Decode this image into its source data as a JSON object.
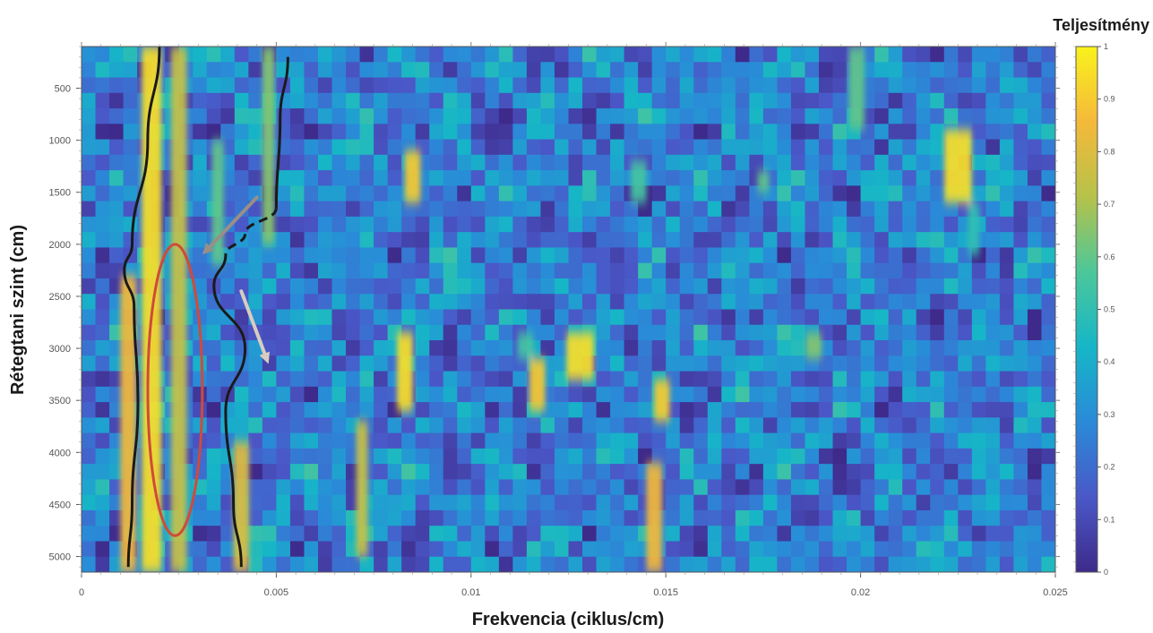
{
  "chart_data": {
    "type": "heatmap",
    "title": "",
    "xlabel": "Frekvencia (ciklus/cm)",
    "ylabel": "Rétegtani szint (cm)",
    "colorbar_label": "Teljesítmény",
    "xlim": [
      0,
      0.025
    ],
    "ylim": [
      100,
      5150
    ],
    "y_reversed": true,
    "clim": [
      0,
      1
    ],
    "colormap": "parula",
    "colormap_stops": [
      "#3e2a8a",
      "#4a58c8",
      "#2a8ad8",
      "#16b6c7",
      "#4cc79a",
      "#b6c24a",
      "#f5b93a",
      "#f9f21c"
    ],
    "x_ticks": [
      {
        "value": 0,
        "label": "0"
      },
      {
        "value": 0.005,
        "label": "0.005"
      },
      {
        "value": 0.01,
        "label": "0.01"
      },
      {
        "value": 0.015,
        "label": "0.015"
      },
      {
        "value": 0.02,
        "label": "0.02"
      },
      {
        "value": 0.025,
        "label": "0.025"
      }
    ],
    "y_ticks": [
      {
        "value": 500,
        "label": "500"
      },
      {
        "value": 1000,
        "label": "1000"
      },
      {
        "value": 1500,
        "label": "1500"
      },
      {
        "value": 2000,
        "label": "2000"
      },
      {
        "value": 2500,
        "label": "2500"
      },
      {
        "value": 3000,
        "label": "3000"
      },
      {
        "value": 3500,
        "label": "3500"
      },
      {
        "value": 4000,
        "label": "4000"
      },
      {
        "value": 4500,
        "label": "4500"
      },
      {
        "value": 5000,
        "label": "5000"
      }
    ],
    "colorbar_ticks": [
      {
        "value": 0,
        "label": "0"
      },
      {
        "value": 0.1,
        "label": "0.1"
      },
      {
        "value": 0.2,
        "label": "0.2"
      },
      {
        "value": 0.3,
        "label": "0.3"
      },
      {
        "value": 0.4,
        "label": "0.4"
      },
      {
        "value": 0.5,
        "label": "0.5"
      },
      {
        "value": 0.6,
        "label": "0.6"
      },
      {
        "value": 0.7,
        "label": "0.7"
      },
      {
        "value": 0.8,
        "label": "0.8"
      },
      {
        "value": 0.9,
        "label": "0.9"
      },
      {
        "value": 1,
        "label": "1"
      }
    ],
    "hotspots": [
      {
        "x": 0.0018,
        "y": [
          100,
          5150
        ],
        "amp": 0.95,
        "width": 0.0005
      },
      {
        "x": 0.0025,
        "y": [
          100,
          5150
        ],
        "amp": 0.75,
        "width": 0.0004
      },
      {
        "x": 0.0012,
        "y": [
          2300,
          5150
        ],
        "amp": 0.85,
        "width": 0.0004
      },
      {
        "x": 0.0035,
        "y": [
          1000,
          2200
        ],
        "amp": 0.6,
        "width": 0.0003
      },
      {
        "x": 0.0041,
        "y": [
          3900,
          5150
        ],
        "amp": 0.8,
        "width": 0.0004
      },
      {
        "x": 0.0048,
        "y": [
          100,
          2000
        ],
        "amp": 0.65,
        "width": 0.0003
      },
      {
        "x": 0.0085,
        "y": [
          1100,
          1600
        ],
        "amp": 0.9,
        "width": 0.0004
      },
      {
        "x": 0.0083,
        "y": [
          2850,
          3600
        ],
        "amp": 0.95,
        "width": 0.0004
      },
      {
        "x": 0.0072,
        "y": [
          3700,
          5000
        ],
        "amp": 0.75,
        "width": 0.0003
      },
      {
        "x": 0.0114,
        "y": [
          2850,
          3100
        ],
        "amp": 0.55,
        "width": 0.0004
      },
      {
        "x": 0.0117,
        "y": [
          3100,
          3600
        ],
        "amp": 0.9,
        "width": 0.0004
      },
      {
        "x": 0.0128,
        "y": [
          2850,
          3300
        ],
        "amp": 0.95,
        "width": 0.0007
      },
      {
        "x": 0.0143,
        "y": [
          1200,
          1600
        ],
        "amp": 0.55,
        "width": 0.0004
      },
      {
        "x": 0.0149,
        "y": [
          3300,
          3700
        ],
        "amp": 0.9,
        "width": 0.0004
      },
      {
        "x": 0.0147,
        "y": [
          4100,
          5150
        ],
        "amp": 0.85,
        "width": 0.0004
      },
      {
        "x": 0.0175,
        "y": [
          1300,
          1500
        ],
        "amp": 0.6,
        "width": 0.0003
      },
      {
        "x": 0.0188,
        "y": [
          2850,
          3100
        ],
        "amp": 0.65,
        "width": 0.0004
      },
      {
        "x": 0.0199,
        "y": [
          100,
          900
        ],
        "amp": 0.6,
        "width": 0.0004
      },
      {
        "x": 0.0225,
        "y": [
          900,
          1600
        ],
        "amp": 0.95,
        "width": 0.0007
      },
      {
        "x": 0.0229,
        "y": [
          1600,
          2100
        ],
        "amp": 0.5,
        "width": 0.0003
      }
    ],
    "annotations": [
      {
        "type": "curve",
        "color": "#1a1a1a",
        "points": [
          [
            0.002,
            100
          ],
          [
            0.0017,
            1000
          ],
          [
            0.0013,
            2000
          ],
          [
            0.0011,
            2250
          ],
          [
            0.00135,
            2600
          ],
          [
            0.00145,
            3500
          ],
          [
            0.0013,
            4500
          ],
          [
            0.0012,
            5100
          ]
        ]
      },
      {
        "type": "curve",
        "color": "#1a1a1a",
        "points": [
          [
            0.0053,
            200
          ],
          [
            0.0051,
            800
          ],
          [
            0.005,
            1650
          ]
        ]
      },
      {
        "type": "dashed",
        "color": "#1a1a1a",
        "points": [
          [
            0.005,
            1650
          ],
          [
            0.0042,
            1900
          ],
          [
            0.0037,
            2100
          ]
        ]
      },
      {
        "type": "curve",
        "color": "#1a1a1a",
        "points": [
          [
            0.0037,
            2100
          ],
          [
            0.0034,
            2400
          ],
          [
            0.0042,
            3000
          ],
          [
            0.0037,
            3600
          ],
          [
            0.0039,
            4500
          ],
          [
            0.0041,
            5100
          ]
        ]
      },
      {
        "type": "ellipse",
        "color": "#d04a3a",
        "cx": 0.0024,
        "cy": 3400,
        "rx": 0.0007,
        "ry": 1400
      },
      {
        "type": "arrow",
        "color": "#9a8f86",
        "from": [
          0.0045,
          1550
        ],
        "to": [
          0.0031,
          2100
        ]
      },
      {
        "type": "arrow",
        "color": "#d8ccc0",
        "from": [
          0.0041,
          2450
        ],
        "to": [
          0.0048,
          3150
        ]
      }
    ]
  }
}
